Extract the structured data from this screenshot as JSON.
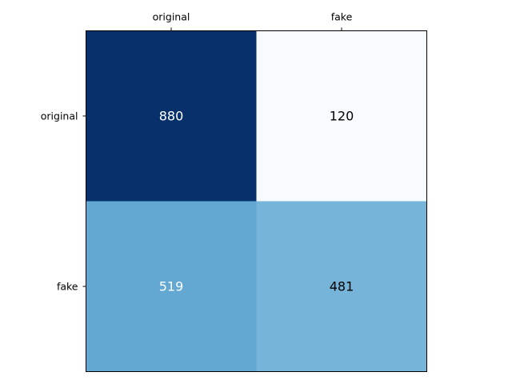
{
  "chart_data": {
    "type": "heatmap",
    "title": "",
    "xlabel": "",
    "ylabel": "",
    "x_categories": [
      "original",
      "fake"
    ],
    "y_categories": [
      "original",
      "fake"
    ],
    "x_tick_position": "top",
    "values": [
      [
        880,
        120
      ],
      [
        519,
        481
      ]
    ],
    "colormap": "Blues",
    "value_range": [
      120,
      880
    ],
    "grid": false,
    "legend": "none"
  },
  "colors": {
    "cells": [
      [
        "#08306b",
        "#f7fbff"
      ],
      [
        "#63a8d3",
        "#76b4d9"
      ]
    ],
    "text_dark_bg": "#ffffff",
    "text_light_bg": "#000000"
  }
}
